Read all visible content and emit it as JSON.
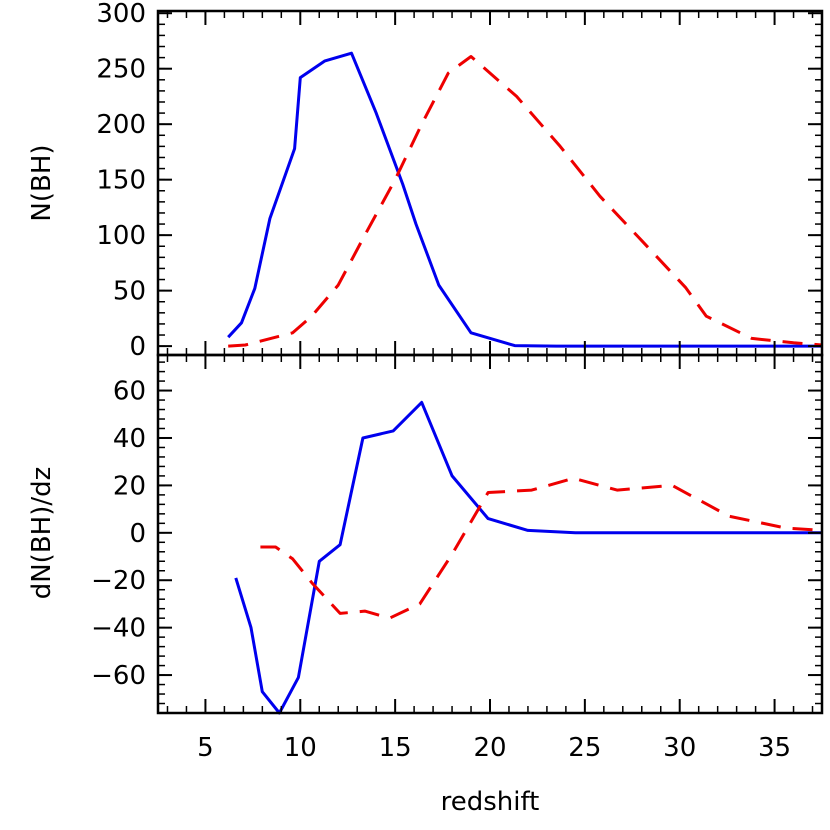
{
  "chart_data": [
    {
      "type": "line",
      "ylabel": "N(BH)",
      "xlim": [
        2.5,
        37.5
      ],
      "ylim": [
        -8,
        302
      ],
      "yticks": [
        0,
        50,
        100,
        150,
        200,
        250,
        300
      ],
      "ytick_labels": [
        "0",
        "50",
        "100",
        "150",
        "200",
        "250",
        "300"
      ],
      "series": [
        {
          "color": "#0000ee",
          "style": "solid",
          "points": [
            [
              6.2,
              8
            ],
            [
              6.9,
              21
            ],
            [
              7.6,
              52
            ],
            [
              8.4,
              115
            ],
            [
              9.7,
              178
            ],
            [
              10.0,
              242
            ],
            [
              11.3,
              257
            ],
            [
              12.7,
              264
            ],
            [
              14.0,
              210
            ],
            [
              15.4,
              146
            ],
            [
              16.1,
              110
            ],
            [
              17.3,
              55
            ],
            [
              19.0,
              12
            ],
            [
              21.3,
              0.5
            ],
            [
              23.5,
              0
            ],
            [
              37.5,
              0
            ]
          ]
        },
        {
          "color": "#ee0000",
          "style": "dashed",
          "points": [
            [
              6.2,
              0
            ],
            [
              7.1,
              1
            ],
            [
              9.6,
              12
            ],
            [
              10.6,
              27
            ],
            [
              12.0,
              55
            ],
            [
              13.4,
              100
            ],
            [
              15.0,
              150
            ],
            [
              16.4,
              200
            ],
            [
              17.8,
              246
            ],
            [
              19.0,
              261
            ],
            [
              21.4,
              225
            ],
            [
              23.7,
              180
            ],
            [
              25.8,
              135
            ],
            [
              28.0,
              95
            ],
            [
              30.3,
              53
            ],
            [
              31.4,
              27
            ],
            [
              33.8,
              7
            ],
            [
              36.0,
              3
            ],
            [
              37.5,
              1
            ]
          ]
        }
      ]
    },
    {
      "type": "line",
      "xlabel": "redshift",
      "ylabel": "dN(BH)/dz",
      "xlim": [
        2.5,
        37.5
      ],
      "ylim": [
        -76,
        75
      ],
      "xticks": [
        5,
        10,
        15,
        20,
        25,
        30,
        35
      ],
      "xtick_labels": [
        "5",
        "10",
        "15",
        "20",
        "25",
        "30",
        "35"
      ],
      "yticks": [
        -60,
        -40,
        -20,
        0,
        20,
        40,
        60
      ],
      "ytick_labels": [
        "−60",
        "−40",
        "−20",
        "0",
        "20",
        "40",
        "60"
      ],
      "series": [
        {
          "color": "#0000ee",
          "style": "solid",
          "points": [
            [
              6.6,
              -19
            ],
            [
              7.4,
              -40
            ],
            [
              8.0,
              -67
            ],
            [
              8.9,
              -76
            ],
            [
              9.9,
              -61
            ],
            [
              11.0,
              -12
            ],
            [
              12.1,
              -5
            ],
            [
              13.3,
              40
            ],
            [
              14.9,
              43
            ],
            [
              16.4,
              55
            ],
            [
              18.0,
              24
            ],
            [
              19.9,
              6
            ],
            [
              22.0,
              1
            ],
            [
              24.5,
              0
            ],
            [
              37.5,
              0
            ]
          ]
        },
        {
          "color": "#ee0000",
          "style": "dashed",
          "points": [
            [
              7.9,
              -6
            ],
            [
              8.7,
              -6
            ],
            [
              9.6,
              -11
            ],
            [
              10.6,
              -21
            ],
            [
              12.1,
              -34
            ],
            [
              13.4,
              -33
            ],
            [
              14.7,
              -36
            ],
            [
              16.3,
              -30
            ],
            [
              18.0,
              -9
            ],
            [
              19.9,
              17
            ],
            [
              22.2,
              18
            ],
            [
              24.4,
              23
            ],
            [
              26.7,
              18
            ],
            [
              29.6,
              20
            ],
            [
              32.6,
              7
            ],
            [
              35.6,
              2
            ],
            [
              37.5,
              1
            ]
          ]
        }
      ]
    }
  ]
}
